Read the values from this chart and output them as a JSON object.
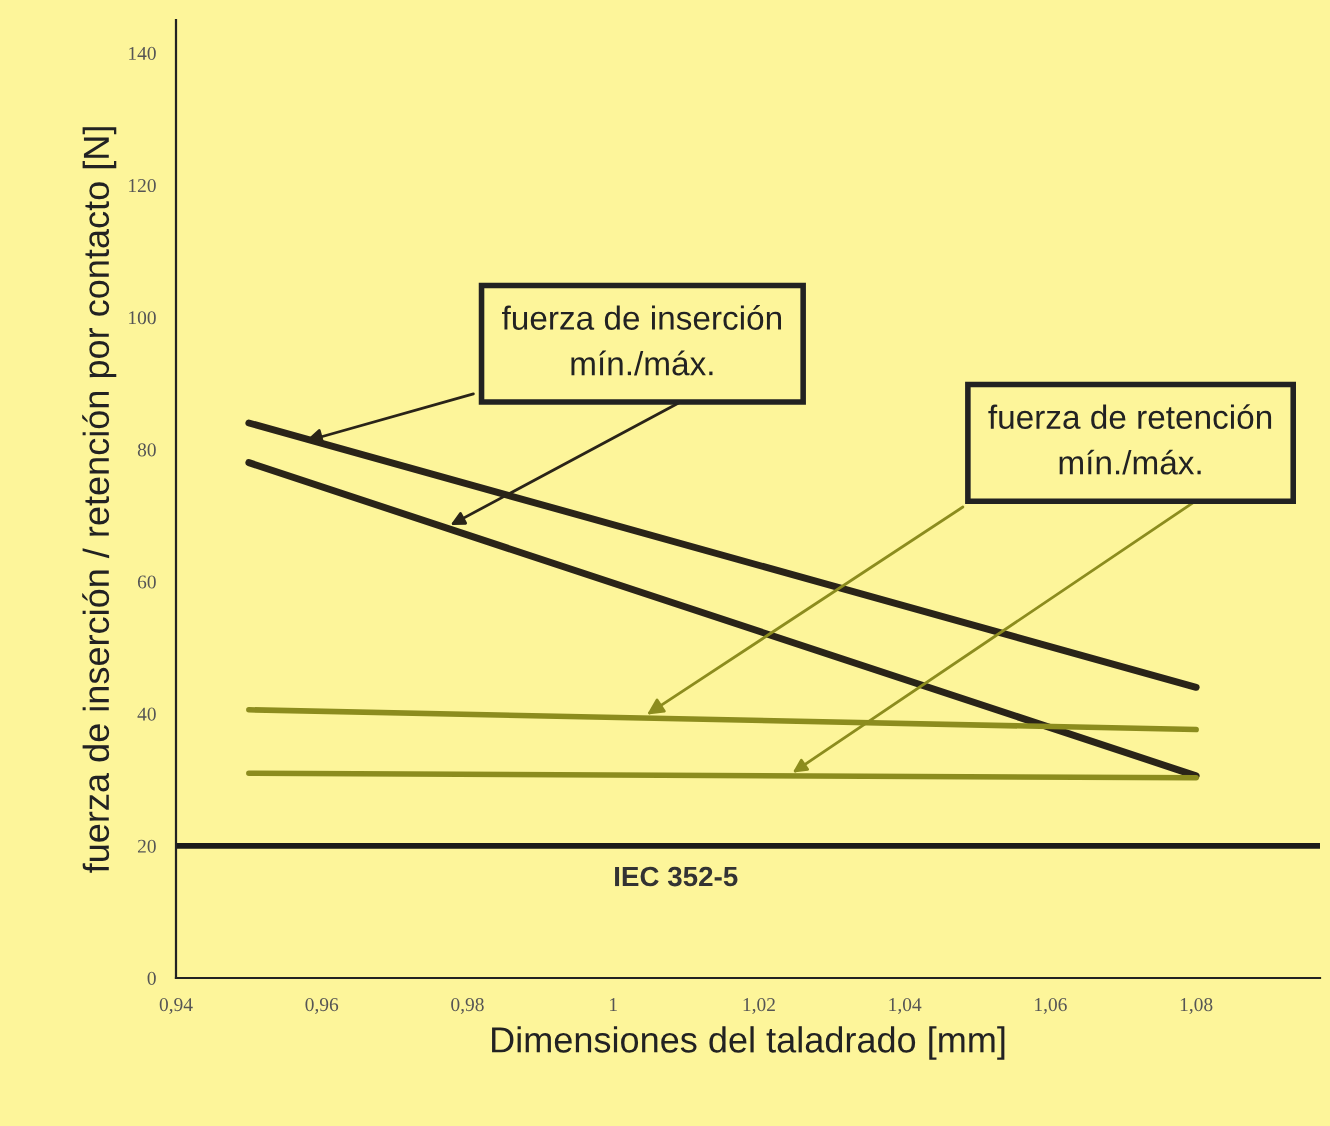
{
  "chart_data": {
    "type": "line",
    "xlabel": "Dimensiones del taladrado [mm]",
    "ylabel": "fuerza de inserción / retención por contacto [N]",
    "x": [
      0.95,
      1.08
    ],
    "series": [
      {
        "color": "#2a2418",
        "values": [
          84,
          44
        ]
      },
      {
        "color": "#2a2418",
        "values": [
          78,
          30.6
        ]
      },
      {
        "color": "#8c8c1e",
        "values": [
          40.6,
          37.6
        ]
      },
      {
        "color": "#8c8c1e",
        "values": [
          31,
          30.3
        ]
      }
    ],
    "xlim": [
      0.94,
      1.097
    ],
    "xticks": [
      {
        "value": 0.94,
        "label": "0,94"
      },
      {
        "value": 0.96,
        "label": "0,96"
      },
      {
        "value": 0.98,
        "label": "0,98"
      },
      {
        "value": 1,
        "label": "1"
      },
      {
        "value": 1.02,
        "label": "1,02"
      },
      {
        "value": 1.04,
        "label": "1,04"
      },
      {
        "value": 1.06,
        "label": "1,06"
      },
      {
        "value": 1.08,
        "label": "1,08"
      }
    ],
    "ylim": [
      0,
      145
    ],
    "yticks": [
      0,
      20,
      40,
      60,
      80,
      100,
      120,
      140
    ],
    "ref_lines": [
      {
        "axis": "y",
        "value": 20,
        "label": "IEC 352-5",
        "color": "#1a1a1a"
      }
    ],
    "annotations": [
      {
        "text": "fuerza de inserción\nmín./máx.",
        "x": 0.957,
        "y": 81
      },
      {
        "text": "fuerza de retención\nmín./máx.",
        "x": 1.004,
        "y": 39.4
      }
    ],
    "grid": false,
    "legend": false,
    "line_style": "solid",
    "marker": "none"
  }
}
